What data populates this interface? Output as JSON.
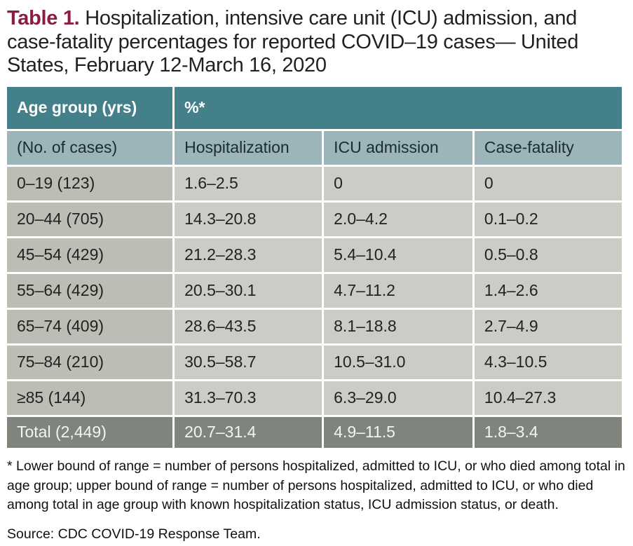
{
  "colors": {
    "title_accent": "#8b1c44",
    "header_dark": "#43808a",
    "header_light": "#9cb5ba",
    "age_col_bg": "#bcbeb6",
    "cell_bg": "#cbccc6",
    "total_bg": "#7f847d"
  },
  "title": {
    "label": "Table 1.",
    "text": " Hospitalization, intensive care unit (ICU) admission, and case-fatality percentages for reported COVID–19 cases— United States, February 12-March 16, 2020"
  },
  "table": {
    "header_row1": {
      "age_group": "Age group (yrs)",
      "percent": "%*"
    },
    "header_row2": {
      "no_of_cases": "(No. of cases)",
      "hospitalization": "Hospitalization",
      "icu_admission": "ICU admission",
      "case_fatality": "Case-fatality"
    },
    "rows": [
      {
        "age": "0–19 (123)",
        "hospitalization": "1.6–2.5",
        "icu_admission": "0",
        "case_fatality": "0"
      },
      {
        "age": "20–44 (705)",
        "hospitalization": "14.3–20.8",
        "icu_admission": "2.0–4.2",
        "case_fatality": "0.1–0.2"
      },
      {
        "age": "45–54 (429)",
        "hospitalization": "21.2–28.3",
        "icu_admission": "5.4–10.4",
        "case_fatality": "0.5–0.8"
      },
      {
        "age": "55–64 (429)",
        "hospitalization": "20.5–30.1",
        "icu_admission": "4.7–11.2",
        "case_fatality": "1.4–2.6"
      },
      {
        "age": "65–74 (409)",
        "hospitalization": "28.6–43.5",
        "icu_admission": "8.1–18.8",
        "case_fatality": "2.7–4.9"
      },
      {
        "age": "75–84 (210)",
        "hospitalization": "30.5–58.7",
        "icu_admission": "10.5–31.0",
        "case_fatality": "4.3–10.5"
      },
      {
        "age": "≥85 (144)",
        "hospitalization": "31.3–70.3",
        "icu_admission": "6.3–29.0",
        "case_fatality": "10.4–27.3"
      }
    ],
    "total": {
      "age": "Total (2,449)",
      "hospitalization": "20.7–31.4",
      "icu_admission": "4.9–11.5",
      "case_fatality": "1.8–3.4"
    }
  },
  "footnote": "* Lower bound of range = number of persons hospitalized, admitted to ICU, or who died among total in age group; upper bound of range = number of persons hospitalized, admitted to ICU, or who died among total in age group with known hospitalization status, ICU admission status, or death.",
  "source": "Source: CDC COVID-19 Response Team."
}
